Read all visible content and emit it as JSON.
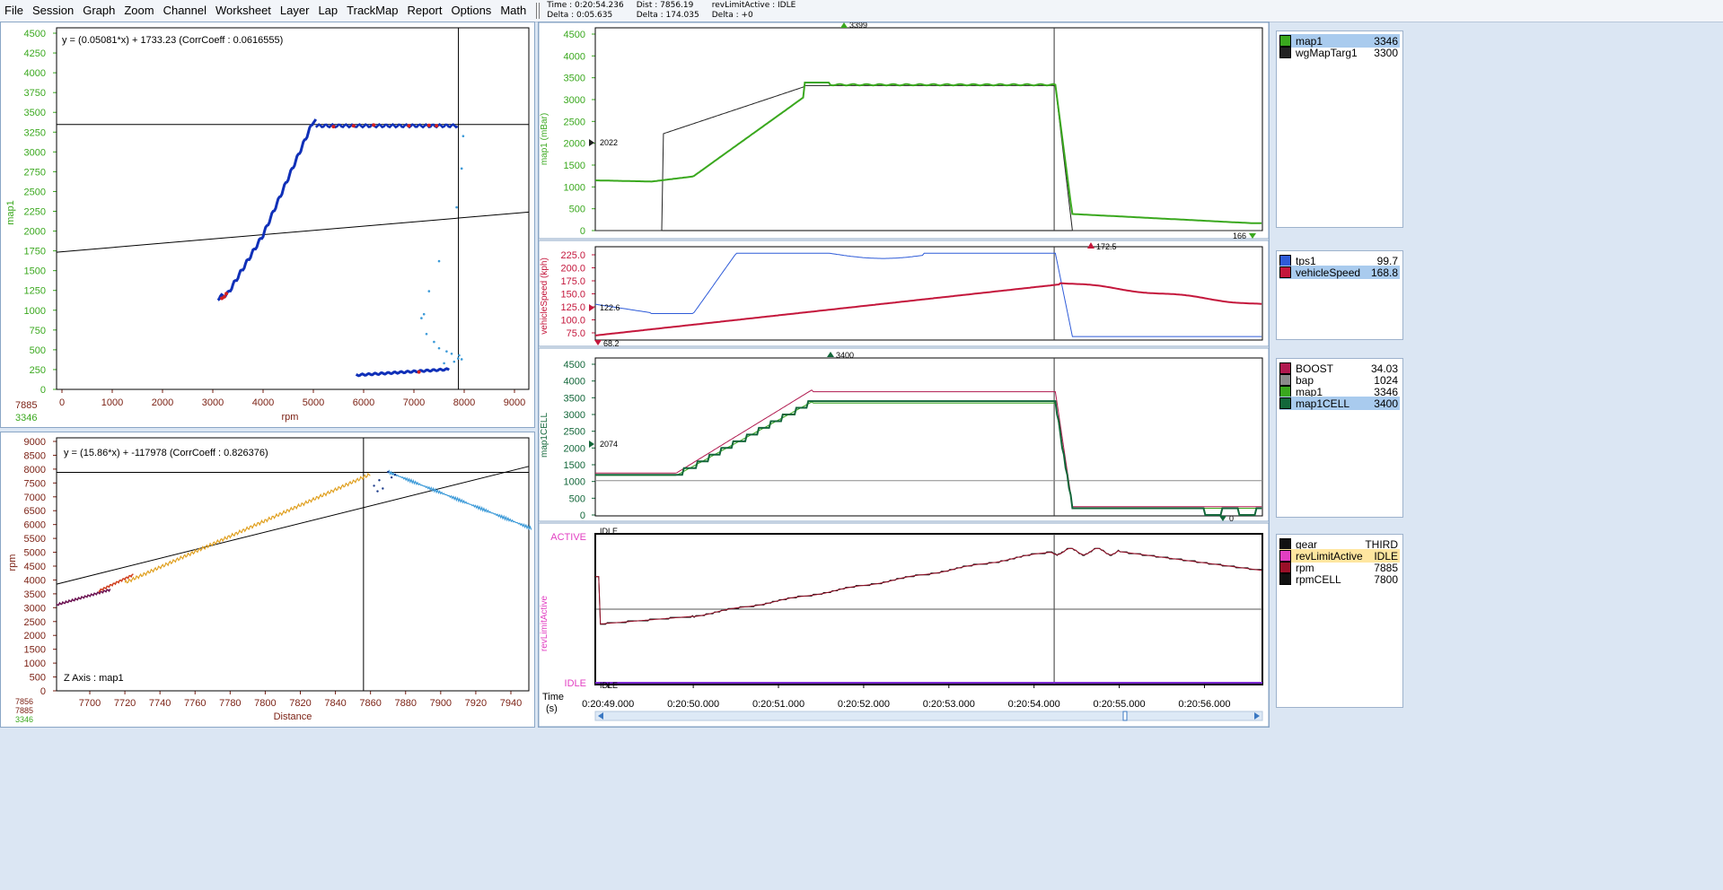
{
  "menu": [
    "File",
    "Session",
    "Graph",
    "Zoom",
    "Channel",
    "Worksheet",
    "Layer",
    "Lap",
    "TrackMap",
    "Report",
    "Options",
    "Math"
  ],
  "status": {
    "time": "Time : 0:20:54.236",
    "delta1": "Delta : 0:05.635",
    "dist": "Dist : 7856.19",
    "delta2": "Delta : 174.035",
    "rev": "revLimitActive : IDLE",
    "delta3": "Delta : +0"
  },
  "colors": {
    "map1": "#3aa81e",
    "wgMapTarg1": "#222222",
    "tps1": "#2e5bd8",
    "vehicleSpeed": "#c4173c",
    "BOOST": "#b0184e",
    "bap": "#8a8a8a",
    "map1CELL": "#13673a",
    "gear": "#111111",
    "revLimitActive": "#e23fc2",
    "rpm": "#9a0f28",
    "rpmCELL": "#111111"
  },
  "scatter1": {
    "ylabel": "map1",
    "xlabel": "rpm",
    "equation": "y = (0.05081*x) + 1733.23  (CorrCoeff : 0.0616555)",
    "yticks": [
      "4500",
      "4250",
      "4000",
      "3750",
      "3500",
      "3250",
      "3000",
      "2750",
      "2500",
      "2250",
      "2000",
      "1750",
      "1500",
      "1250",
      "1000",
      "750",
      "500",
      "250",
      "0"
    ],
    "xticks": [
      "0",
      "1000",
      "2000",
      "3000",
      "4000",
      "5000",
      "6000",
      "7000",
      "8000",
      "9000"
    ],
    "cursor_x": "7885",
    "cursor_y": "3346"
  },
  "scatter2": {
    "ylabel": "rpm",
    "xlabel": "Distance",
    "equation": "y = (15.86*x) + -117978  (CorrCoeff : 0.826376)",
    "zaxis": "Z Axis : map1",
    "yticks": [
      "9000",
      "8500",
      "8000",
      "7500",
      "7000",
      "6500",
      "6000",
      "5500",
      "5000",
      "4500",
      "4000",
      "3500",
      "3000",
      "2500",
      "2000",
      "1500",
      "1000",
      "500",
      "0"
    ],
    "xticks": [
      "7700",
      "7720",
      "7740",
      "7760",
      "7780",
      "7800",
      "7820",
      "7840",
      "7860",
      "7880",
      "7900",
      "7920",
      "7940"
    ],
    "cursor_a": "7856",
    "cursor_b": "7885",
    "cursor_c": "3346"
  },
  "ts1": {
    "ylabel": "map1 (mBar)",
    "yticks": [
      "4500",
      "4000",
      "3500",
      "3000",
      "2500",
      "2000",
      "1500",
      "1000",
      "500",
      "0"
    ],
    "max_marker": "3399",
    "min_marker": "166",
    "left_marker": "2022"
  },
  "ts2": {
    "ylabel": "vehicleSpeed (kph)",
    "yticks": [
      "225.0",
      "200.0",
      "175.0",
      "150.0",
      "125.0",
      "100.0",
      "75.0"
    ],
    "max_marker": "172.5",
    "left_marker": "122.6",
    "min_marker": "68.2"
  },
  "ts3": {
    "ylabel": "map1CELL",
    "yticks": [
      "4500",
      "4000",
      "3500",
      "3000",
      "2500",
      "2000",
      "1500",
      "1000",
      "500",
      "0"
    ],
    "max_marker": "3400",
    "left_marker": "2074",
    "min_marker": "0"
  },
  "ts4": {
    "ylabel": "revLimitActive",
    "top_label": "ACTIVE",
    "bottom_label": "IDLE",
    "top_marker": "IDLE",
    "bottom_marker": "IDLE"
  },
  "time_axis": {
    "label_line1": "Time",
    "label_line2": "(s)",
    "ticks": [
      "0:20:49.000",
      "0:20:50.000",
      "0:20:51.000",
      "0:20:52.000",
      "0:20:53.000",
      "0:20:54.000",
      "0:20:55.000",
      "0:20:56.000"
    ]
  },
  "legend1": [
    {
      "name": "map1",
      "value": "3346",
      "color": "#3aa81e",
      "selected": true
    },
    {
      "name": "wgMapTarg1",
      "value": "3300",
      "color": "#222222"
    }
  ],
  "legend2": [
    {
      "name": "tps1",
      "value": "99.7",
      "color": "#2e5bd8"
    },
    {
      "name": "vehicleSpeed",
      "value": "168.8",
      "color": "#c4173c",
      "selected": true
    }
  ],
  "legend3": [
    {
      "name": "BOOST",
      "value": "34.03",
      "color": "#b0184e"
    },
    {
      "name": "bap",
      "value": "1024",
      "color": "#8a8a8a"
    },
    {
      "name": "map1",
      "value": "3346",
      "color": "#3aa81e"
    },
    {
      "name": "map1CELL",
      "value": "3400",
      "color": "#13673a",
      "selected": true
    }
  ],
  "legend4": [
    {
      "name": "gear",
      "value": "THIRD",
      "color": "#111111"
    },
    {
      "name": "revLimitActive",
      "value": "IDLE",
      "color": "#e23fc2",
      "highlight": true
    },
    {
      "name": "rpm",
      "value": "7885",
      "color": "#9a0f28"
    },
    {
      "name": "rpmCELL",
      "value": "7800",
      "color": "#111111"
    }
  ]
}
